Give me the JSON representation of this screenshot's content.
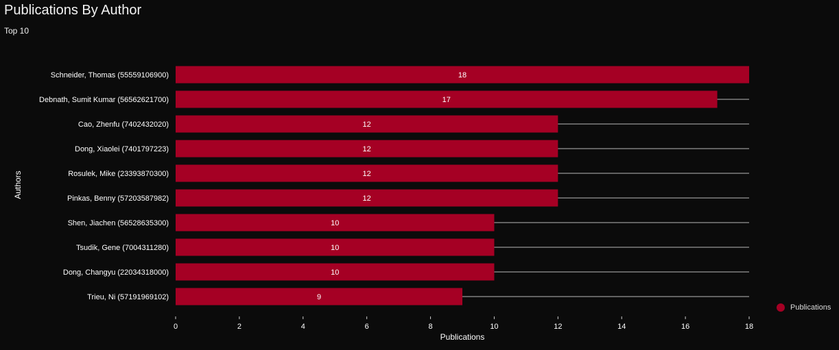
{
  "title": "Publications By Author",
  "subtitle": "Top 10",
  "legend": {
    "label": "Publications"
  },
  "colors": {
    "bar": "#a50024",
    "track": "#7f7f7f",
    "background": "#0b0b0b"
  },
  "chart_data": {
    "type": "bar",
    "orientation": "horizontal",
    "xlabel": "Publications",
    "ylabel": "Authors",
    "xlim": [
      0,
      18
    ],
    "xticks": [
      0,
      2,
      4,
      6,
      8,
      10,
      12,
      14,
      16,
      18
    ],
    "grid": false,
    "legend_position": "bottom-right",
    "categories": [
      "Schneider, Thomas (55559106900)",
      "Debnath, Sumit Kumar (56562621700)",
      "Cao, Zhenfu (7402432020)",
      "Dong, Xiaolei (7401797223)",
      "Rosulek, Mike (23393870300)",
      "Pinkas, Benny (57203587982)",
      "Shen, Jiachen (56528635300)",
      "Tsudik, Gene (7004311280)",
      "Dong, Changyu (22034318000)",
      "Trieu, Ni (57191969102)"
    ],
    "series": [
      {
        "name": "Publications",
        "values": [
          18,
          17,
          12,
          12,
          12,
          12,
          10,
          10,
          10,
          9
        ]
      }
    ]
  }
}
